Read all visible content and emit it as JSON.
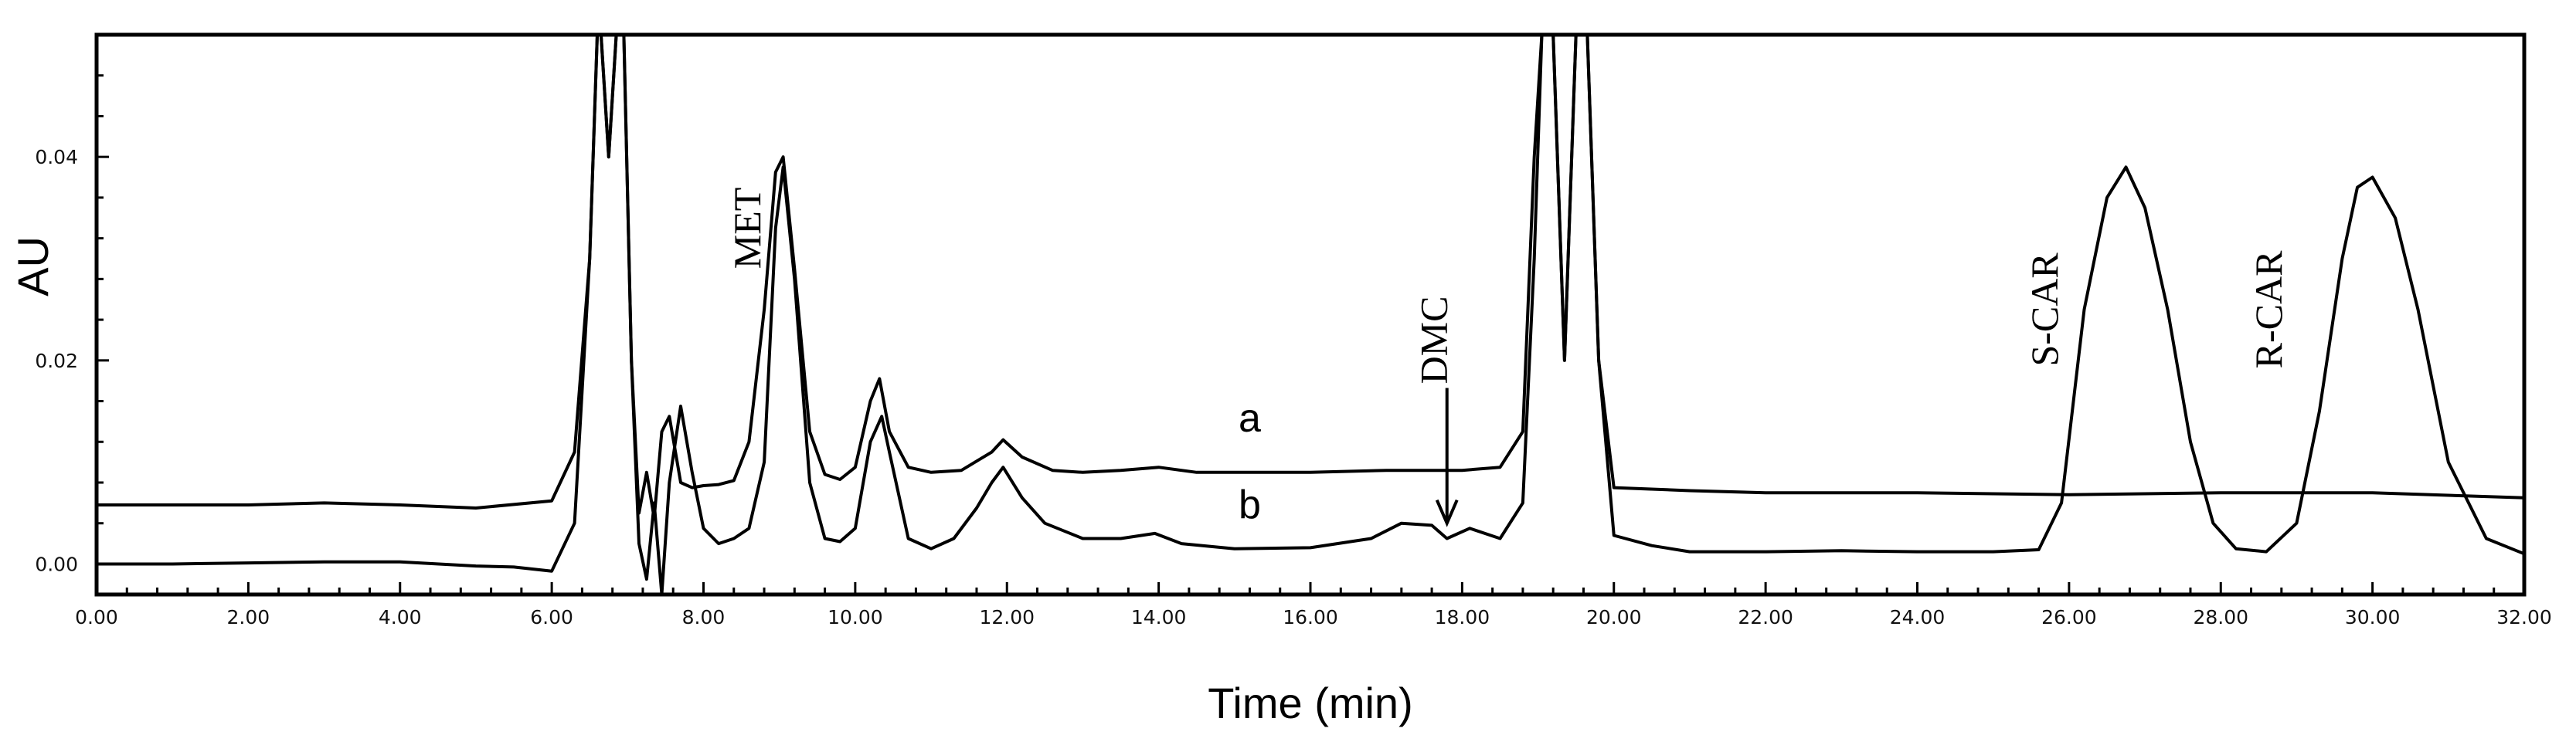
{
  "chart_data": {
    "type": "line",
    "title": "",
    "xlabel": "Time (min)",
    "ylabel": "AU",
    "xlim": [
      0,
      32
    ],
    "ylim": [
      -0.003,
      0.052
    ],
    "x_tick_values": [
      0,
      2,
      4,
      6,
      8,
      10,
      12,
      14,
      16,
      18,
      20,
      22,
      24,
      26,
      28,
      30,
      32
    ],
    "x_tick_labels": [
      "0.00",
      "2.00",
      "4.00",
      "6.00",
      "8.00",
      "10.00",
      "12.00",
      "14.00",
      "16.00",
      "18.00",
      "20.00",
      "22.00",
      "24.00",
      "26.00",
      "28.00",
      "30.00",
      "32.00"
    ],
    "y_tick_values": [
      0.0,
      0.02,
      0.04
    ],
    "y_tick_labels": [
      "0.00",
      "0.02",
      "0.04"
    ],
    "grid": false,
    "series": [
      {
        "name": "a",
        "x": [
          0,
          2,
          3,
          4,
          5,
          6,
          6.3,
          6.5,
          6.6,
          6.65,
          6.75,
          6.85,
          6.95,
          7.05,
          7.15,
          7.25,
          7.35,
          7.45,
          7.55,
          7.7,
          7.85,
          8.0,
          8.2,
          8.4,
          8.6,
          8.8,
          8.95,
          9.05,
          9.2,
          9.4,
          9.6,
          9.8,
          10.0,
          10.2,
          10.32,
          10.45,
          10.7,
          11.0,
          11.4,
          11.8,
          11.95,
          12.2,
          12.6,
          13.0,
          13.5,
          14.0,
          14.5,
          15.0,
          16.0,
          17.0,
          18.0,
          18.5,
          18.8,
          18.95,
          19.05,
          19.2,
          19.35,
          19.5,
          19.65,
          19.8,
          20.0,
          21.0,
          22.0,
          24.0,
          26.0,
          28.0,
          30.0,
          32.0
        ],
        "y": [
          0.0058,
          0.0058,
          0.006,
          0.0058,
          0.0055,
          0.0062,
          0.011,
          0.03,
          0.06,
          0.06,
          0.04,
          0.062,
          0.062,
          0.02,
          0.005,
          0.009,
          0.0045,
          0.013,
          0.0145,
          0.008,
          0.0075,
          0.0077,
          0.0078,
          0.0082,
          0.012,
          0.025,
          0.0385,
          0.04,
          0.029,
          0.013,
          0.0088,
          0.0083,
          0.0095,
          0.016,
          0.0182,
          0.013,
          0.0095,
          0.009,
          0.0092,
          0.011,
          0.0122,
          0.0105,
          0.0092,
          0.009,
          0.0092,
          0.0095,
          0.009,
          0.009,
          0.009,
          0.0092,
          0.0092,
          0.0095,
          0.013,
          0.04,
          0.06,
          0.06,
          0.02,
          0.06,
          0.06,
          0.02,
          0.0075,
          0.0072,
          0.007,
          0.007,
          0.0068,
          0.007,
          0.007,
          0.0065
        ]
      },
      {
        "name": "b",
        "x": [
          0,
          1,
          2,
          3,
          4,
          5,
          5.5,
          6.0,
          6.3,
          6.5,
          6.6,
          6.65,
          6.75,
          6.85,
          6.95,
          7.05,
          7.15,
          7.25,
          7.35,
          7.45,
          7.55,
          7.7,
          7.85,
          8.0,
          8.2,
          8.4,
          8.6,
          8.8,
          8.95,
          9.05,
          9.2,
          9.4,
          9.6,
          9.8,
          10.0,
          10.2,
          10.35,
          10.45,
          10.7,
          11.0,
          11.3,
          11.6,
          11.8,
          11.95,
          12.2,
          12.5,
          13.0,
          13.5,
          13.95,
          14.3,
          15.0,
          16.0,
          16.8,
          17.2,
          17.6,
          17.8,
          18.1,
          18.5,
          18.8,
          18.95,
          19.05,
          19.2,
          19.35,
          19.5,
          19.65,
          19.8,
          20.0,
          20.5,
          21.0,
          22.0,
          23.0,
          24.0,
          25.0,
          25.6,
          25.9,
          26.2,
          26.5,
          26.75,
          27.0,
          27.3,
          27.6,
          27.9,
          28.2,
          28.6,
          29.0,
          29.3,
          29.6,
          29.8,
          30.0,
          30.3,
          30.6,
          31.0,
          31.5,
          32.0
        ],
        "y": [
          0.0,
          0.0,
          0.0001,
          0.0002,
          0.0002,
          -0.0002,
          -0.0003,
          -0.0007,
          0.004,
          0.03,
          0.06,
          0.06,
          0.04,
          0.062,
          0.062,
          0.02,
          0.002,
          -0.0015,
          0.006,
          -0.003,
          0.008,
          0.0155,
          0.009,
          0.0035,
          0.002,
          0.0025,
          0.0035,
          0.01,
          0.033,
          0.039,
          0.028,
          0.008,
          0.0025,
          0.0022,
          0.0035,
          0.012,
          0.0145,
          0.011,
          0.0025,
          0.0015,
          0.0025,
          0.0055,
          0.008,
          0.0095,
          0.0065,
          0.004,
          0.0025,
          0.0025,
          0.003,
          0.002,
          0.0015,
          0.0016,
          0.0025,
          0.004,
          0.0038,
          0.0025,
          0.0035,
          0.0025,
          0.006,
          0.03,
          0.06,
          0.06,
          0.02,
          0.06,
          0.06,
          0.02,
          0.0028,
          0.0018,
          0.0012,
          0.0012,
          0.0013,
          0.0012,
          0.0012,
          0.0014,
          0.006,
          0.025,
          0.036,
          0.039,
          0.035,
          0.025,
          0.012,
          0.004,
          0.0015,
          0.0012,
          0.004,
          0.015,
          0.03,
          0.037,
          0.038,
          0.034,
          0.025,
          0.01,
          0.0025,
          0.001
        ]
      }
    ],
    "annotations": [
      {
        "text": "MET",
        "x": 8.75,
        "y": 0.033,
        "rotate": true
      },
      {
        "text": "DMC",
        "x": 17.8,
        "y": 0.022,
        "rotate": true,
        "arrow_to": [
          17.8,
          0.004
        ]
      },
      {
        "text": "S-CAR",
        "x": 25.85,
        "y": 0.025,
        "rotate": true
      },
      {
        "text": "R-CAR",
        "x": 28.8,
        "y": 0.025,
        "rotate": true
      }
    ],
    "trace_labels": [
      {
        "text": "a",
        "x": 15.2,
        "y": 0.013
      },
      {
        "text": "b",
        "x": 15.2,
        "y": 0.0045
      }
    ]
  }
}
